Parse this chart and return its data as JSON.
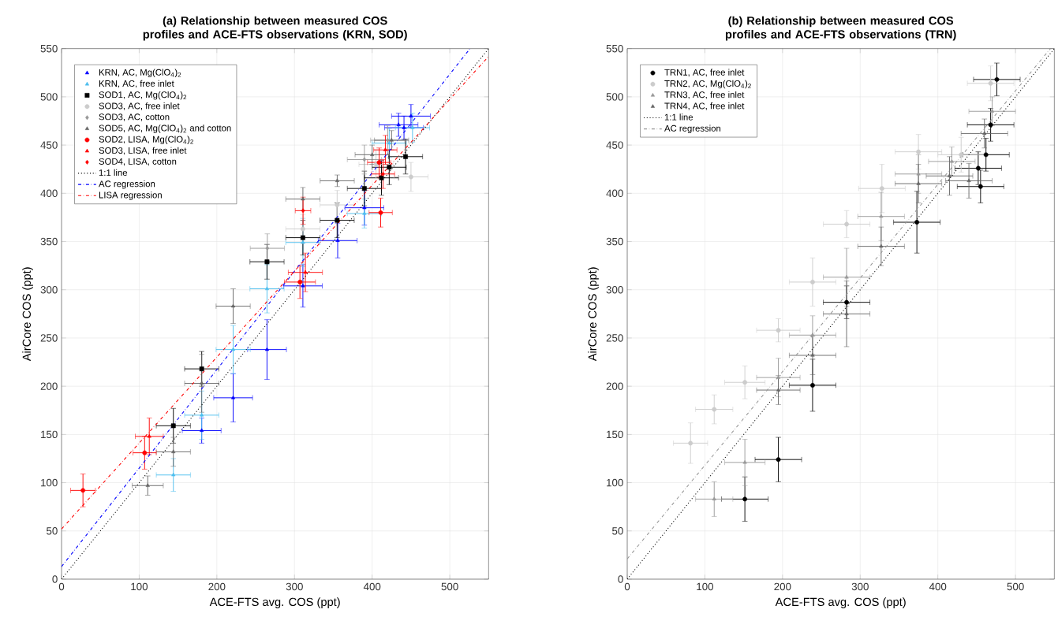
{
  "chart_data": [
    {
      "type": "scatter",
      "title": "(a) Relationship between measured COS profiles and ACE-FTS observations (KRN, SOD)",
      "xlabel": "ACE-FTS avg. COS (ppt)",
      "ylabel": "AirCore COS (ppt)",
      "xlim": [
        0,
        550
      ],
      "ylim": [
        0,
        550
      ],
      "xticks": [
        0,
        100,
        200,
        300,
        400,
        500
      ],
      "yticks": [
        0,
        50,
        100,
        150,
        200,
        250,
        300,
        350,
        400,
        450,
        500,
        550
      ],
      "grid": true,
      "legend": "top left",
      "series": [
        {
          "name": "KRN, AC, Mg(ClO$_{4}$)$_{2}$",
          "color": "#0000ff",
          "marker": "triangle",
          "x": [
            180.5,
            221,
            264.6,
            310.8,
            355.6,
            390,
            434,
            441,
            450
          ],
          "values": [
            154,
            188,
            238,
            304,
            351,
            385,
            471,
            468,
            480
          ],
          "xerrors": [
            25,
            25,
            25,
            25,
            25,
            25,
            25,
            25,
            25
          ],
          "errors": [
            13,
            25,
            31,
            22,
            18,
            18,
            12,
            12,
            12
          ]
        },
        {
          "name": "KRN, AC, free inlet",
          "color": "#4dbeee",
          "marker": "triangle",
          "x": [
            144,
            180.5,
            221,
            264.6,
            310.8,
            390,
            422,
            452
          ],
          "values": [
            108,
            170,
            238,
            301,
            349,
            379,
            452,
            468
          ],
          "xerrors": [
            22,
            22,
            22,
            22,
            22,
            22,
            22,
            22
          ],
          "errors": [
            17,
            25,
            25,
            25,
            25,
            15,
            15,
            15
          ]
        },
        {
          "name": "SOD1, AC, Mg(ClO$_{4}$)$_{2}$",
          "color": "#000000",
          "marker": "square",
          "x": [
            144,
            180.5,
            264.6,
            310.8,
            354.9,
            390,
            412,
            422,
            443
          ],
          "values": [
            159,
            218,
            329,
            354,
            372,
            405,
            416,
            427,
            438
          ],
          "xerrors": [
            22,
            22,
            22,
            22,
            22,
            22,
            22,
            22,
            22
          ],
          "errors": [
            18,
            18,
            18,
            18,
            18,
            18,
            18,
            18,
            18
          ]
        },
        {
          "name": "SOD3, AC, free inlet",
          "color": "#cccccc",
          "marker": "circle",
          "x": [
            310.8,
            354.9,
            405,
            450
          ],
          "values": [
            363,
            388,
            430,
            417
          ],
          "xerrors": [
            22,
            22,
            22,
            22
          ],
          "errors": [
            15,
            15,
            15,
            15
          ]
        },
        {
          "name": "SOD3, AC, cotton",
          "color": "#999999",
          "marker": "diamond",
          "x": [
            265,
            390,
            420
          ],
          "values": [
            343,
            435,
            455
          ],
          "xerrors": [
            22,
            22,
            22
          ],
          "errors": [
            15,
            15,
            15
          ]
        },
        {
          "name": "SOD5, AC, Mg(ClO$_{4}$)$_{2}$ and cotton",
          "color": "#666666",
          "marker": "triangle",
          "x": [
            111,
            144,
            180.5,
            221,
            310.8,
            355,
            400,
            425
          ],
          "values": [
            97,
            132,
            203,
            283,
            394,
            413,
            440,
            455
          ],
          "xerrors": [
            20,
            22,
            22,
            22,
            22,
            22,
            22,
            22
          ],
          "errors": [
            10,
            15,
            30,
            18,
            12,
            6,
            10,
            10
          ]
        },
        {
          "name": "SOD2, LISA, Mg(ClO$_{4}$)$_{2}$",
          "color": "#ff0000",
          "marker": "circle",
          "x": [
            27.6,
            107,
            307,
            411,
            409
          ],
          "values": [
            92,
            131,
            308,
            380,
            432
          ],
          "xerrors": [
            16,
            15,
            20,
            15,
            15
          ],
          "errors": [
            17,
            17,
            17,
            15,
            15
          ]
        },
        {
          "name": "SOD3, LISA, free inlet",
          "color": "#ff0000",
          "marker": "triangle",
          "x": [
            113,
            314,
            417
          ],
          "values": [
            148,
            318,
            445
          ],
          "xerrors": [
            18,
            22,
            15
          ],
          "errors": [
            19,
            20,
            15
          ]
        },
        {
          "name": "SOD4, LISA, cotton",
          "color": "#ff0000",
          "marker": "diamond",
          "x": [
            311,
            414
          ],
          "values": [
            382,
            420
          ],
          "xerrors": [
            10,
            15
          ],
          "errors": [
            14,
            15
          ]
        },
        {
          "name": "1:1 line",
          "type": "line",
          "color": "#000000",
          "line_style": "dotted",
          "marker": "none",
          "x": [
            0,
            550
          ],
          "values": [
            0,
            550
          ]
        },
        {
          "name": "AC regression",
          "type": "line",
          "color": "#0000ff",
          "line_style": "dashdot",
          "marker": "none",
          "x": [
            0,
            526
          ],
          "values": [
            13,
            550
          ]
        },
        {
          "name": "LISA regression",
          "type": "line",
          "color": "#ff0000",
          "line_style": "dashdot",
          "marker": "none",
          "x": [
            0,
            550
          ],
          "values": [
            52,
            542
          ]
        }
      ]
    },
    {
      "type": "scatter",
      "title": "(b) Relationship between measured COS profiles and ACE-FTS observations (TRN)",
      "xlabel": "ACE-FTS avg. COS (ppt)",
      "ylabel": "AirCore COS (ppt)",
      "xlim": [
        0,
        550
      ],
      "ylim": [
        0,
        550
      ],
      "xticks": [
        0,
        100,
        200,
        300,
        400,
        500
      ],
      "yticks": [
        0,
        50,
        100,
        150,
        200,
        250,
        300,
        350,
        400,
        450,
        500,
        550
      ],
      "grid": true,
      "legend": "top left",
      "series": [
        {
          "name": "TRN1, AC, free inlet",
          "color": "#000000",
          "marker": "circle",
          "x": [
            151.5,
            194.6,
            238.7,
            282.5,
            373,
            455,
            452,
            462,
            468,
            476
          ],
          "values": [
            83,
            124,
            201,
            287,
            370,
            407,
            426,
            440,
            471,
            518
          ],
          "xerrors": [
            30,
            30,
            30,
            30,
            30,
            30,
            30,
            30,
            30,
            30
          ],
          "errors": [
            23,
            23,
            27,
            17,
            32,
            17,
            17,
            17,
            17,
            17
          ]
        },
        {
          "name": "TRN2, AC, Mg(ClO$_{4}$)$_{2}$",
          "color": "#cccccc",
          "marker": "circle",
          "x": [
            81.5,
            112,
            151.5,
            194.6,
            238.7,
            282.5,
            328,
            375,
            430,
            468
          ],
          "values": [
            141,
            176,
            204,
            258,
            308,
            368,
            405,
            443,
            440,
            514
          ],
          "xerrors": [
            22,
            24,
            26,
            28,
            30,
            30,
            30,
            30,
            30,
            30
          ],
          "errors": [
            21,
            15,
            17,
            12,
            25,
            14,
            25,
            18,
            18,
            18
          ]
        },
        {
          "name": "TRN3, AC, free inlet",
          "color": "#999999",
          "marker": "triangle",
          "x": [
            112,
            151.5,
            194.6,
            238.7,
            282.5,
            327,
            375,
            418,
            470
          ],
          "values": [
            83,
            121,
            209,
            253,
            313,
            376,
            420,
            433,
            485
          ],
          "xerrors": [
            24,
            26,
            28,
            30,
            30,
            30,
            30,
            30,
            30
          ],
          "errors": [
            18,
            24,
            20,
            20,
            30,
            25,
            20,
            15,
            15
          ]
        },
        {
          "name": "TRN4, AC, free inlet",
          "color": "#666666",
          "marker": "triangle",
          "x": [
            194.6,
            238.7,
            282.5,
            327,
            375,
            415,
            440,
            460
          ],
          "values": [
            196,
            232,
            275,
            345,
            410,
            418,
            413,
            462
          ],
          "xerrors": [
            28,
            30,
            30,
            30,
            30,
            30,
            30,
            30
          ],
          "errors": [
            15,
            20,
            34,
            20,
            20,
            20,
            18,
            15
          ]
        },
        {
          "name": "1:1 line",
          "type": "line",
          "color": "#000000",
          "line_style": "dotted",
          "marker": "none",
          "x": [
            0,
            550
          ],
          "values": [
            0,
            550
          ]
        },
        {
          "name": "AC regression",
          "type": "line",
          "color": "#999999",
          "line_style": "dashdot",
          "marker": "none",
          "x": [
            0,
            545
          ],
          "values": [
            21,
            550
          ]
        }
      ]
    }
  ]
}
